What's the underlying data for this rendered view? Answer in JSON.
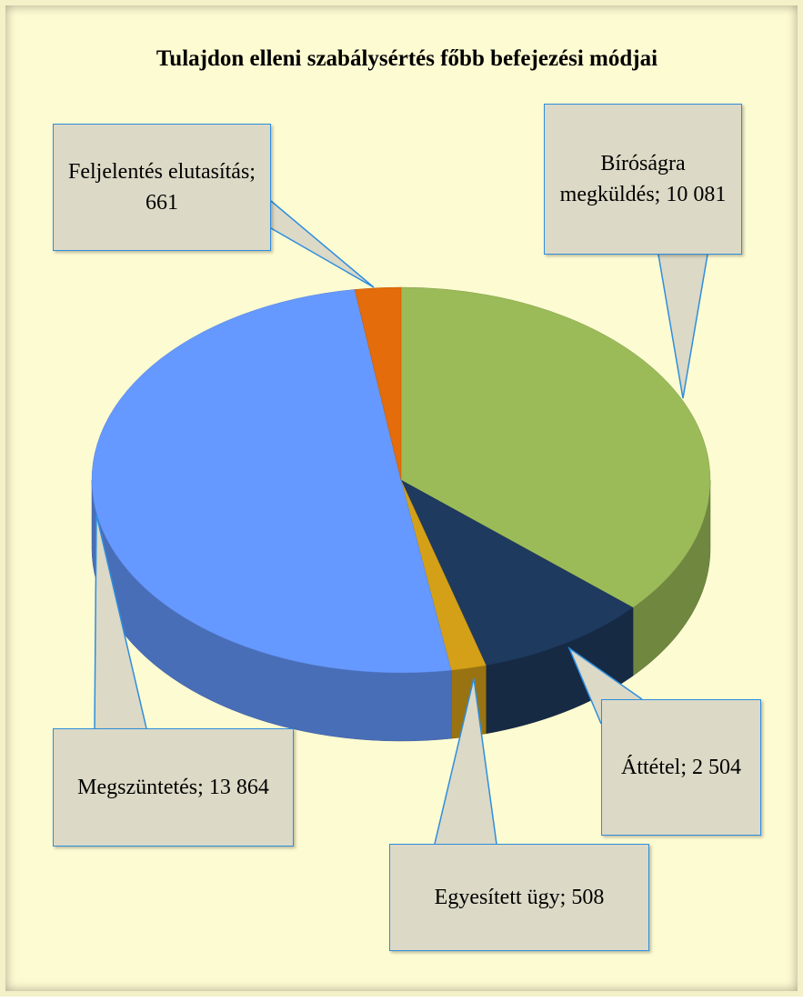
{
  "chart_data": {
    "type": "pie3d",
    "title": "Tulajdon elleni szabálysértés főbb befejezési módjai",
    "categories": [
      "Bíróságra megküldés",
      "Áttétel",
      "Egyesített ügy",
      "Megszüntetés",
      "Feljelentés elutasítás"
    ],
    "values": [
      10081,
      2504,
      508,
      13864,
      661
    ],
    "value_labels": [
      "10 081",
      "2 504",
      "508",
      "13 864",
      "661"
    ],
    "label_separator": "; ",
    "colors": [
      "#9bbb59",
      "#1f3a5f",
      "#d4a017",
      "#6699ff",
      "#e46c0a"
    ]
  }
}
